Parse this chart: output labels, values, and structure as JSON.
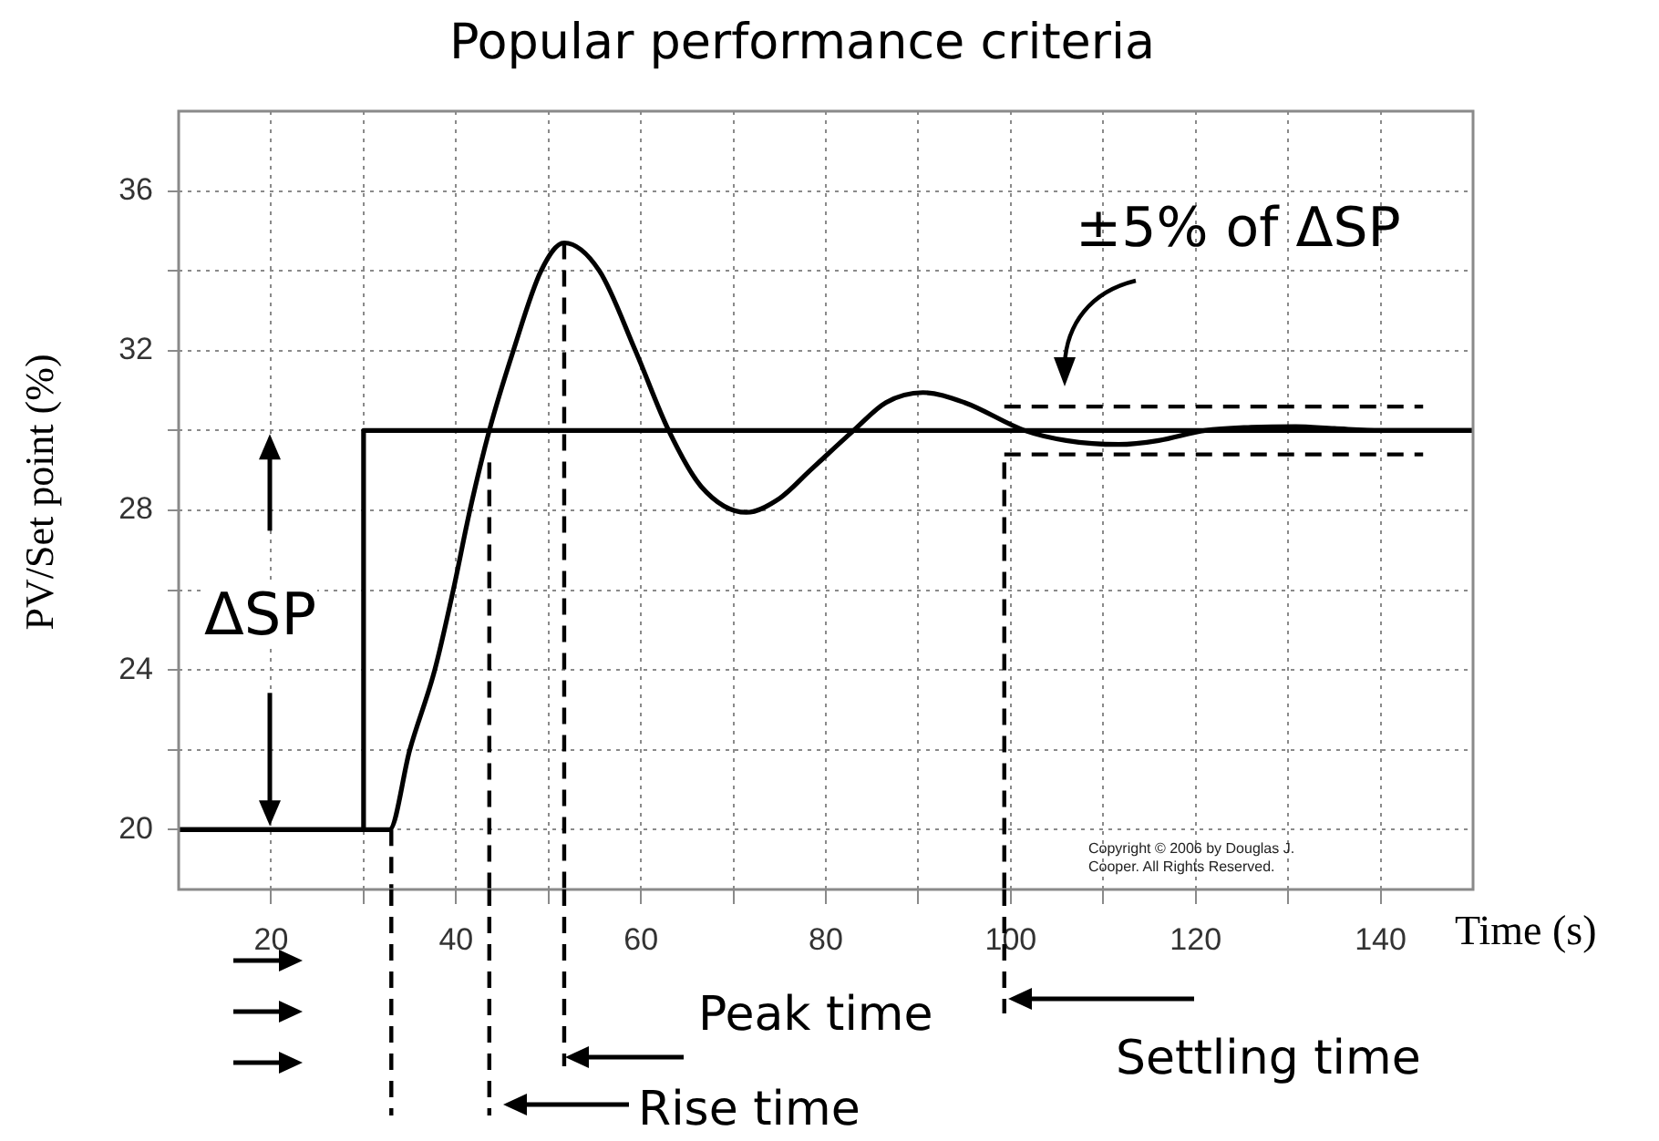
{
  "chart_data": {
    "type": "line",
    "title": "Popular performance criteria",
    "xlabel": "Time (s)",
    "ylabel": "PV/Set point (%)",
    "xlim": [
      10,
      150
    ],
    "ylim": [
      18.5,
      38
    ],
    "xticks": [
      20,
      {
        "value": 30,
        "label": null
      },
      40,
      {
        "value": 50,
        "label": null
      },
      60,
      {
        "value": 70,
        "label": null
      },
      80,
      {
        "value": 90,
        "label": null
      },
      100,
      {
        "value": 110,
        "label": null
      },
      120,
      {
        "value": 130,
        "label": null
      },
      140
    ],
    "yticks": [
      20,
      {
        "value": 22,
        "label": null
      },
      24,
      {
        "value": 26,
        "label": null
      },
      28,
      {
        "value": 30,
        "label": null
      },
      32,
      {
        "value": 34,
        "label": null
      },
      36
    ],
    "grid": true,
    "marker": "none",
    "line_style": "solid",
    "series": [
      {
        "color": "#000000",
        "x": [
          10,
          30,
          30,
          150
        ],
        "values": [
          20,
          20,
          30,
          30
        ]
      },
      {
        "color": "#000000",
        "x": [
          10,
          32.8,
          35,
          37.7,
          39.7,
          41.5,
          43.6,
          46.2,
          49.2,
          51.7,
          55.5,
          59.4,
          63,
          66.5,
          71.4,
          75,
          78.3,
          83,
          86.5,
          90.5,
          95,
          101.5,
          106,
          111.7,
          116,
          121,
          126,
          130.8,
          135,
          140,
          150
        ],
        "values": [
          20,
          20,
          22,
          24,
          26,
          28,
          30,
          32,
          34,
          34.7,
          34,
          32,
          30,
          28.6,
          27.95,
          28.3,
          29,
          30,
          30.7,
          30.95,
          30.7,
          30,
          29.75,
          29.65,
          29.75,
          30,
          30.08,
          30.1,
          30.05,
          30,
          30
        ]
      },
      {
        "color": "#000000",
        "line_style": "dashed",
        "x": [
          99.3,
          144.6
        ],
        "values": [
          30.6,
          30.6
        ]
      },
      {
        "color": "#000000",
        "line_style": "dashed",
        "x": [
          99.3,
          144.6
        ],
        "values": [
          29.4,
          29.4
        ]
      },
      {
        "color": "#000000",
        "line_style": "dashed",
        "x": [
          33,
          33
        ],
        "values": [
          20,
          18.5
        ]
      },
      {
        "color": "#000000",
        "line_style": "dashed",
        "x": [
          43.6,
          43.6
        ],
        "values": [
          29.2,
          18.5
        ]
      },
      {
        "color": "#000000",
        "line_style": "dashed",
        "x": [
          51.7,
          51.7
        ],
        "values": [
          34.7,
          18.5
        ]
      },
      {
        "color": "#000000",
        "line_style": "dashed",
        "x": [
          99.3,
          99.3
        ],
        "values": [
          29.2,
          18.5
        ]
      }
    ],
    "annotations": [
      "ΔSP",
      "±5% of ΔSP",
      "Peak time",
      "Rise time",
      "Settling time",
      "Copyright © 2006 by Douglas J. Cooper. All Rights Reserved."
    ]
  }
}
